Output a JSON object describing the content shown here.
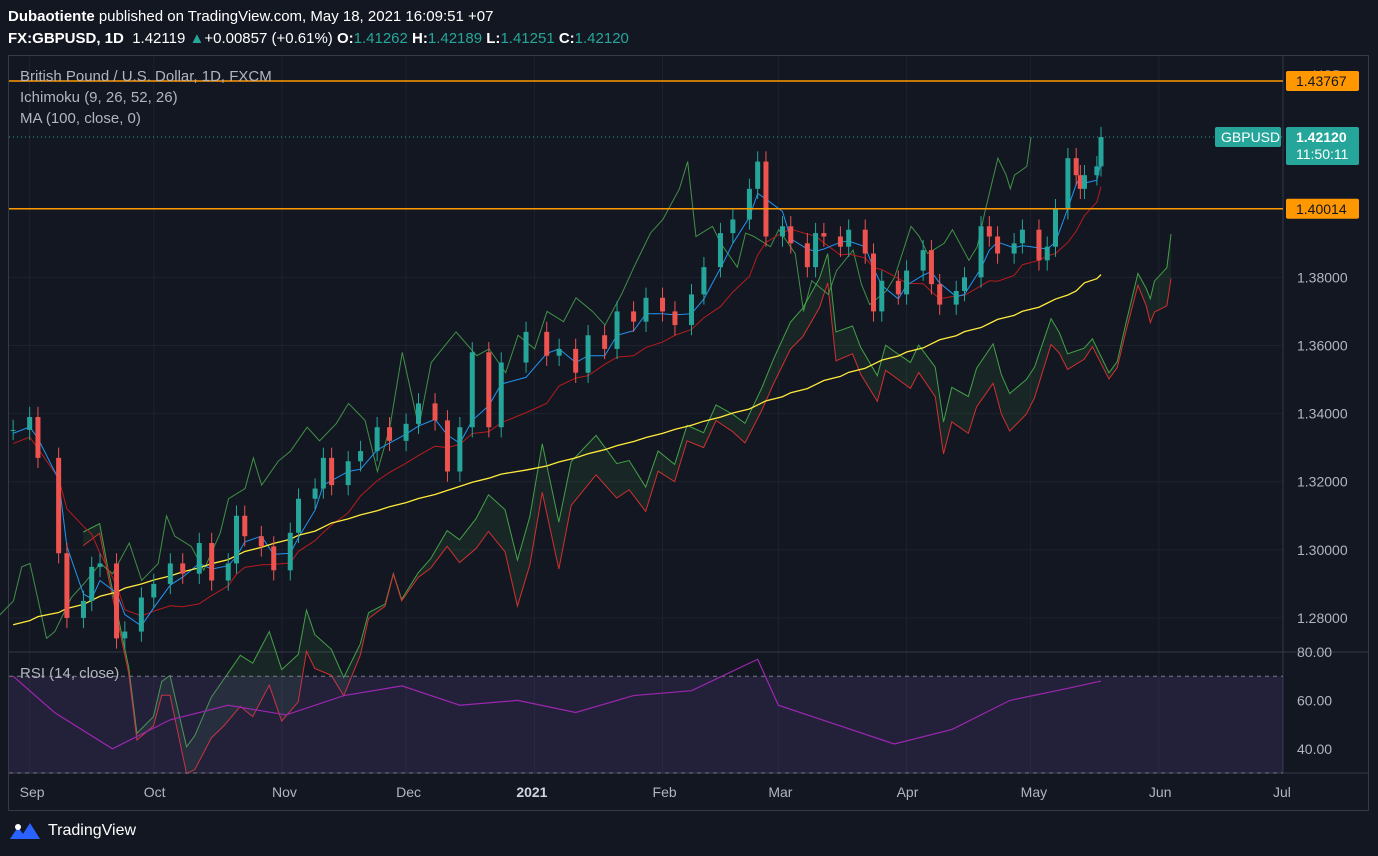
{
  "header": {
    "author": "Dubaotiente",
    "published": "published on TradingView.com, May 18, 2021 16:09:51 +07",
    "symbol": "FX:GBPUSD, 1D",
    "last": "1.42119",
    "change_arrow": "▲",
    "change": "+0.00857 (+0.61%)",
    "o_label": "O:",
    "o": "1.41262",
    "h_label": "H:",
    "h": "1.42189",
    "l_label": "L:",
    "l": "1.41251",
    "c_label": "C:",
    "c": "1.42120"
  },
  "legend": {
    "title": "British Pound / U.S. Dollar, 1D, FXCM",
    "ichimoku": "Ichimoku (9, 26, 52, 26)",
    "ma": "MA (100, close, 0)",
    "rsi": "RSI (14, close)"
  },
  "price_axis": {
    "currency": "USD",
    "symbol_tag": "GBPUSD",
    "current_price": "1.42120",
    "countdown": "11:50:11",
    "resistance_1": "1.43767",
    "resistance_2": "1.40014"
  },
  "footer": {
    "brand": "TradingView"
  },
  "colors": {
    "background": "#131722",
    "up": "#26a69a",
    "down": "#ef5350",
    "tenkan": "#2196f3",
    "kijun": "#b71c1c",
    "span_a": "#43a047",
    "span_b": "#d32f2f",
    "chikou": "#4caf50",
    "ma": "#ffeb3b",
    "hline": "#ff9800",
    "rsi": "#9c27b0"
  },
  "chart_data": [
    {
      "type": "candlestick",
      "title": "British Pound / U.S. Dollar, 1D, FXCM",
      "ylim": [
        1.27,
        1.445
      ],
      "y_ticks": [
        "1.28000",
        "1.30000",
        "1.32000",
        "1.34000",
        "1.36000",
        "1.38000"
      ],
      "x_ticks": [
        "Sep",
        "Oct",
        "Nov",
        "Dec",
        "2021",
        "Feb",
        "Mar",
        "Apr",
        "May",
        "Jun",
        "Jul"
      ],
      "x_range": [
        "2020-08-27",
        "2021-07-01"
      ],
      "horizontal_levels": [
        1.43767,
        1.40014
      ],
      "last_price": 1.4212,
      "closes": [
        {
          "date": "2020-08-28",
          "close": 1.3352
        },
        {
          "date": "2020-09-01",
          "close": 1.339
        },
        {
          "date": "2020-09-03",
          "close": 1.327
        },
        {
          "date": "2020-09-08",
          "close": 1.299
        },
        {
          "date": "2020-09-10",
          "close": 1.28
        },
        {
          "date": "2020-09-14",
          "close": 1.285
        },
        {
          "date": "2020-09-16",
          "close": 1.295
        },
        {
          "date": "2020-09-18",
          "close": 1.296
        },
        {
          "date": "2020-09-22",
          "close": 1.274
        },
        {
          "date": "2020-09-24",
          "close": 1.276
        },
        {
          "date": "2020-09-28",
          "close": 1.286
        },
        {
          "date": "2020-10-01",
          "close": 1.29
        },
        {
          "date": "2020-10-05",
          "close": 1.296
        },
        {
          "date": "2020-10-08",
          "close": 1.293
        },
        {
          "date": "2020-10-12",
          "close": 1.302
        },
        {
          "date": "2020-10-15",
          "close": 1.291
        },
        {
          "date": "2020-10-19",
          "close": 1.296
        },
        {
          "date": "2020-10-21",
          "close": 1.31
        },
        {
          "date": "2020-10-23",
          "close": 1.304
        },
        {
          "date": "2020-10-27",
          "close": 1.301
        },
        {
          "date": "2020-10-30",
          "close": 1.294
        },
        {
          "date": "2020-11-03",
          "close": 1.305
        },
        {
          "date": "2020-11-05",
          "close": 1.315
        },
        {
          "date": "2020-11-09",
          "close": 1.318
        },
        {
          "date": "2020-11-11",
          "close": 1.327
        },
        {
          "date": "2020-11-13",
          "close": 1.319
        },
        {
          "date": "2020-11-17",
          "close": 1.326
        },
        {
          "date": "2020-11-20",
          "close": 1.329
        },
        {
          "date": "2020-11-24",
          "close": 1.336
        },
        {
          "date": "2020-11-27",
          "close": 1.332
        },
        {
          "date": "2020-12-01",
          "close": 1.337
        },
        {
          "date": "2020-12-04",
          "close": 1.343
        },
        {
          "date": "2020-12-08",
          "close": 1.338
        },
        {
          "date": "2020-12-11",
          "close": 1.323
        },
        {
          "date": "2020-12-14",
          "close": 1.336
        },
        {
          "date": "2020-12-17",
          "close": 1.358
        },
        {
          "date": "2020-12-21",
          "close": 1.336
        },
        {
          "date": "2020-12-24",
          "close": 1.355
        },
        {
          "date": "2020-12-30",
          "close": 1.364
        },
        {
          "date": "2021-01-04",
          "close": 1.357
        },
        {
          "date": "2021-01-07",
          "close": 1.359
        },
        {
          "date": "2021-01-11",
          "close": 1.352
        },
        {
          "date": "2021-01-14",
          "close": 1.363
        },
        {
          "date": "2021-01-18",
          "close": 1.359
        },
        {
          "date": "2021-01-21",
          "close": 1.37
        },
        {
          "date": "2021-01-25",
          "close": 1.367
        },
        {
          "date": "2021-01-28",
          "close": 1.374
        },
        {
          "date": "2021-02-01",
          "close": 1.37
        },
        {
          "date": "2021-02-04",
          "close": 1.366
        },
        {
          "date": "2021-02-08",
          "close": 1.375
        },
        {
          "date": "2021-02-11",
          "close": 1.383
        },
        {
          "date": "2021-02-15",
          "close": 1.393
        },
        {
          "date": "2021-02-18",
          "close": 1.397
        },
        {
          "date": "2021-02-22",
          "close": 1.406
        },
        {
          "date": "2021-02-24",
          "close": 1.414
        },
        {
          "date": "2021-02-26",
          "close": 1.392
        },
        {
          "date": "2021-03-02",
          "close": 1.395
        },
        {
          "date": "2021-03-04",
          "close": 1.39
        },
        {
          "date": "2021-03-08",
          "close": 1.383
        },
        {
          "date": "2021-03-10",
          "close": 1.393
        },
        {
          "date": "2021-03-12",
          "close": 1.392
        },
        {
          "date": "2021-03-16",
          "close": 1.389
        },
        {
          "date": "2021-03-18",
          "close": 1.394
        },
        {
          "date": "2021-03-22",
          "close": 1.387
        },
        {
          "date": "2021-03-24",
          "close": 1.37
        },
        {
          "date": "2021-03-26",
          "close": 1.379
        },
        {
          "date": "2021-03-30",
          "close": 1.375
        },
        {
          "date": "2021-04-01",
          "close": 1.382
        },
        {
          "date": "2021-04-05",
          "close": 1.388
        },
        {
          "date": "2021-04-07",
          "close": 1.378
        },
        {
          "date": "2021-04-09",
          "close": 1.372
        },
        {
          "date": "2021-04-13",
          "close": 1.376
        },
        {
          "date": "2021-04-15",
          "close": 1.38
        },
        {
          "date": "2021-04-19",
          "close": 1.395
        },
        {
          "date": "2021-04-21",
          "close": 1.392
        },
        {
          "date": "2021-04-23",
          "close": 1.387
        },
        {
          "date": "2021-04-27",
          "close": 1.39
        },
        {
          "date": "2021-04-29",
          "close": 1.394
        },
        {
          "date": "2021-05-03",
          "close": 1.385
        },
        {
          "date": "2021-05-05",
          "close": 1.389
        },
        {
          "date": "2021-05-07",
          "close": 1.4
        },
        {
          "date": "2021-05-10",
          "close": 1.415
        },
        {
          "date": "2021-05-12",
          "close": 1.41
        },
        {
          "date": "2021-05-13",
          "close": 1.406
        },
        {
          "date": "2021-05-14",
          "close": 1.41
        },
        {
          "date": "2021-05-17",
          "close": 1.4126
        },
        {
          "date": "2021-05-18",
          "close": 1.4212
        }
      ]
    },
    {
      "type": "line",
      "title": "RSI (14, close)",
      "ylim": [
        30,
        80
      ],
      "y_ticks": [
        "40.00",
        "60.00",
        "80.00"
      ],
      "bands": [
        30,
        70
      ],
      "x": [
        "2020-08-28",
        "2020-09-07",
        "2020-09-21",
        "2020-10-05",
        "2020-10-19",
        "2020-11-02",
        "2020-11-16",
        "2020-11-30",
        "2020-12-14",
        "2020-12-28",
        "2021-01-11",
        "2021-01-25",
        "2021-02-08",
        "2021-02-24",
        "2021-03-01",
        "2021-03-15",
        "2021-03-29",
        "2021-04-12",
        "2021-04-26",
        "2021-05-10",
        "2021-05-18"
      ],
      "values": [
        70,
        55,
        40,
        52,
        58,
        54,
        62,
        66,
        58,
        60,
        55,
        62,
        64,
        77,
        58,
        50,
        42,
        48,
        60,
        65,
        68
      ]
    }
  ]
}
